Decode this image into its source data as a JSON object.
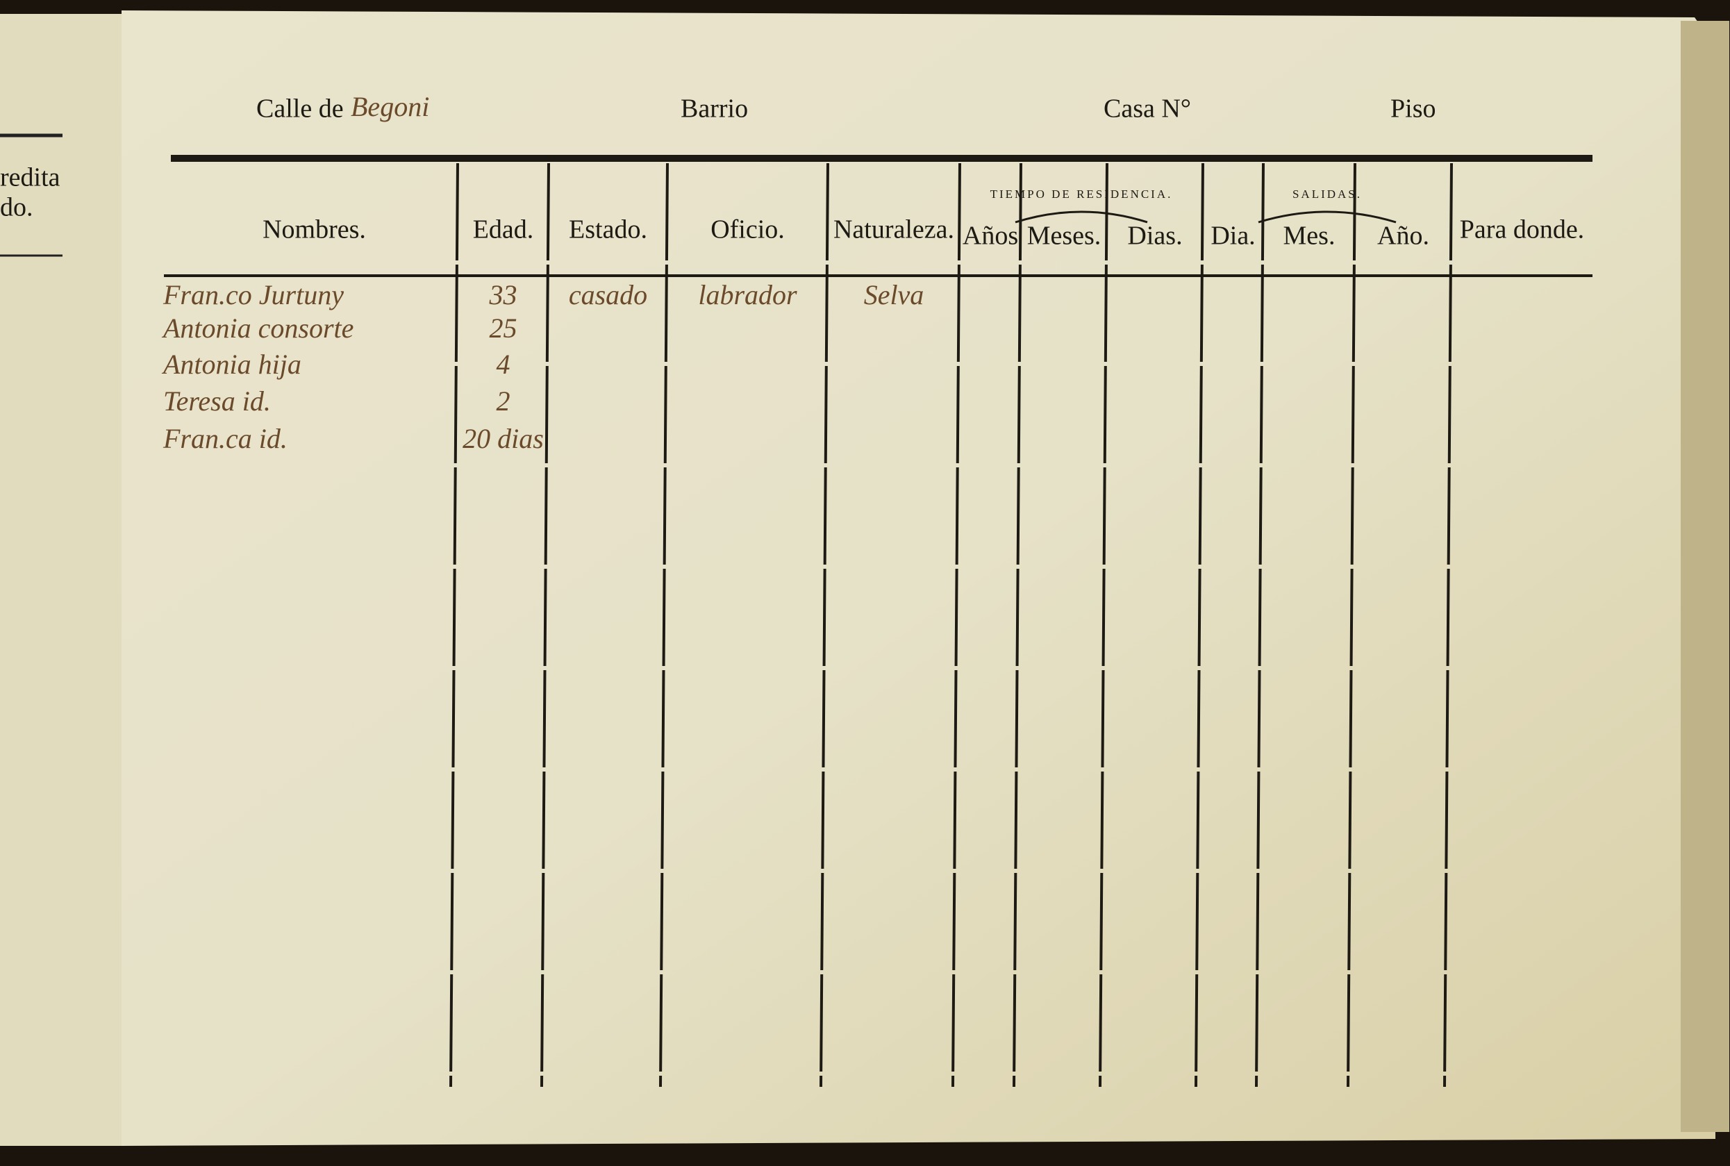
{
  "left_page": {
    "lines": [
      "redita",
      "do."
    ]
  },
  "header": {
    "calle_label": "Calle de",
    "calle_value": "Begoni",
    "barrio_label": "Barrio",
    "casa_label": "Casa N°",
    "piso_label": "Piso"
  },
  "table": {
    "group_headers": [
      "TIEMPO DE RESIDENCIA.",
      "SALIDAS."
    ],
    "columns": [
      "Nombres.",
      "Edad.",
      "Estado.",
      "Oficio.",
      "Naturaleza.",
      "Años",
      "Meses.",
      "Dias.",
      "Dia.",
      "Mes.",
      "Año.",
      "Para donde."
    ],
    "rows": [
      [
        "Fran.co Jurtuny",
        "33",
        "casado",
        "labrador",
        "Selva"
      ],
      [
        "Antonia consorte",
        "25"
      ],
      [
        "Antonia hija",
        "4"
      ],
      [
        "Teresa id.",
        "2"
      ],
      [
        "Fran.ca id.",
        "20 dias"
      ]
    ]
  }
}
